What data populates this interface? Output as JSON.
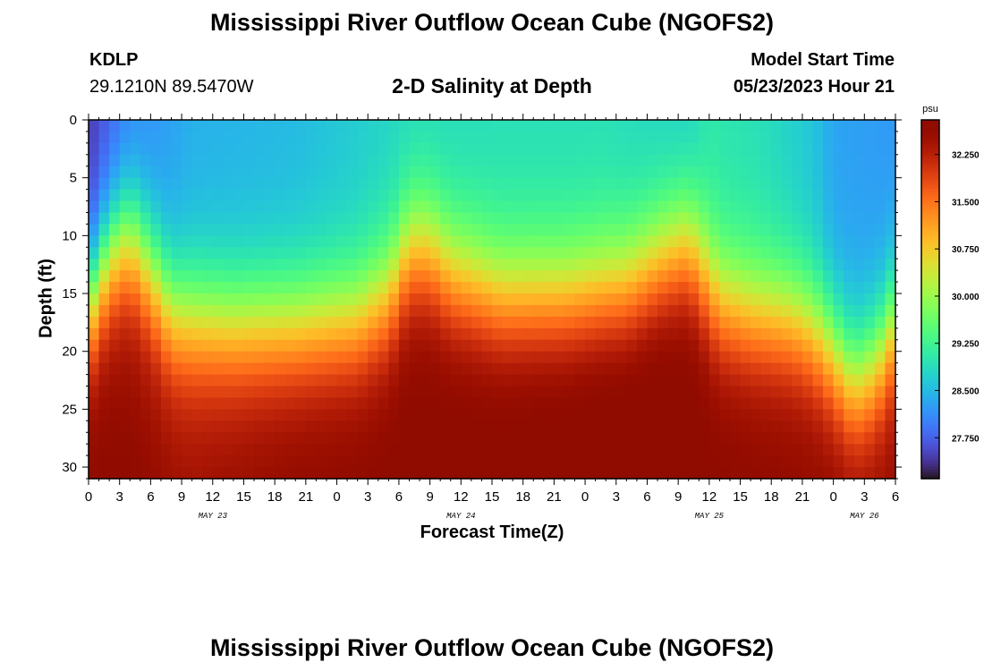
{
  "page": {
    "title": "Mississippi River Outflow Ocean Cube (NGOFS2)",
    "bottom_title": "Mississippi River Outflow Ocean Cube (NGOFS2)"
  },
  "station": {
    "id": "KDLP",
    "location": "29.1210N  89.5470W"
  },
  "model": {
    "label": "Model Start Time",
    "start": "05/23/2023 Hour 21"
  },
  "chart_data": {
    "type": "heatmap",
    "title": "2-D Salinity at Depth",
    "xlabel": "Forecast Time(Z)",
    "ylabel": "Depth (ft)",
    "x_unit": "hours since 05/23/2023 00Z",
    "xlim": [
      0,
      78
    ],
    "ylim": [
      0,
      31
    ],
    "y_inverted": true,
    "x_ticks": [
      {
        "x": 0,
        "label": "0"
      },
      {
        "x": 3,
        "label": "3"
      },
      {
        "x": 6,
        "label": "6"
      },
      {
        "x": 9,
        "label": "9"
      },
      {
        "x": 12,
        "label": "12"
      },
      {
        "x": 15,
        "label": "15"
      },
      {
        "x": 18,
        "label": "18"
      },
      {
        "x": 21,
        "label": "21"
      },
      {
        "x": 24,
        "label": "0"
      },
      {
        "x": 27,
        "label": "3"
      },
      {
        "x": 30,
        "label": "6"
      },
      {
        "x": 33,
        "label": "9"
      },
      {
        "x": 36,
        "label": "12"
      },
      {
        "x": 39,
        "label": "15"
      },
      {
        "x": 42,
        "label": "18"
      },
      {
        "x": 45,
        "label": "21"
      },
      {
        "x": 48,
        "label": "0"
      },
      {
        "x": 51,
        "label": "3"
      },
      {
        "x": 54,
        "label": "6"
      },
      {
        "x": 57,
        "label": "9"
      },
      {
        "x": 60,
        "label": "12"
      },
      {
        "x": 63,
        "label": "15"
      },
      {
        "x": 66,
        "label": "18"
      },
      {
        "x": 69,
        "label": "21"
      },
      {
        "x": 72,
        "label": "0"
      },
      {
        "x": 75,
        "label": "3"
      },
      {
        "x": 78,
        "label": "6"
      }
    ],
    "date_labels": [
      {
        "x": 12,
        "label": "MAY 23"
      },
      {
        "x": 36,
        "label": "MAY 24"
      },
      {
        "x": 60,
        "label": "MAY 25"
      },
      {
        "x": 75,
        "label": "MAY 26"
      }
    ],
    "y_ticks": [
      0,
      5,
      10,
      15,
      20,
      25,
      30
    ],
    "colorbar": {
      "unit": "psu",
      "min": 27.1,
      "max": 32.8,
      "ticks": [
        27.75,
        28.5,
        29.25,
        30.0,
        30.75,
        31.5,
        32.25
      ],
      "tick_labels": [
        "27.750",
        "28.500",
        "29.250",
        "30.000",
        "30.750",
        "31.500",
        "32.250"
      ],
      "colormap": "turbo"
    },
    "halocline_depth_ft": {
      "x": [
        0,
        2,
        4,
        6,
        8,
        10,
        14,
        20,
        26,
        29,
        31,
        33,
        35,
        40,
        46,
        52,
        56,
        58,
        59,
        61,
        64,
        68,
        70,
        72,
        73,
        74,
        75,
        76,
        77,
        78
      ],
      "depth": [
        16,
        11.5,
        10,
        13,
        16.5,
        17,
        17.5,
        17.5,
        17,
        15,
        11,
        11,
        13,
        15,
        15,
        14,
        11.5,
        10.5,
        12,
        15.5,
        16.5,
        17,
        18,
        20,
        21.5,
        22.5,
        22,
        21,
        19.5,
        17
      ]
    },
    "surface_salinity_psu": {
      "x": [
        0,
        4,
        10,
        20,
        30,
        40,
        50,
        58,
        60,
        65,
        70,
        72,
        78
      ],
      "value": [
        27.4,
        28.0,
        28.4,
        28.5,
        28.8,
        28.9,
        28.9,
        28.7,
        29.0,
        28.9,
        28.6,
        28.3,
        28.2
      ]
    },
    "bottom_salinity_psu": {
      "x": [
        0,
        10,
        20,
        30,
        40,
        50,
        55,
        60,
        70,
        78
      ],
      "value": [
        32.5,
        32.3,
        32.5,
        32.6,
        32.7,
        32.8,
        32.8,
        32.6,
        32.5,
        32.4
      ]
    }
  }
}
